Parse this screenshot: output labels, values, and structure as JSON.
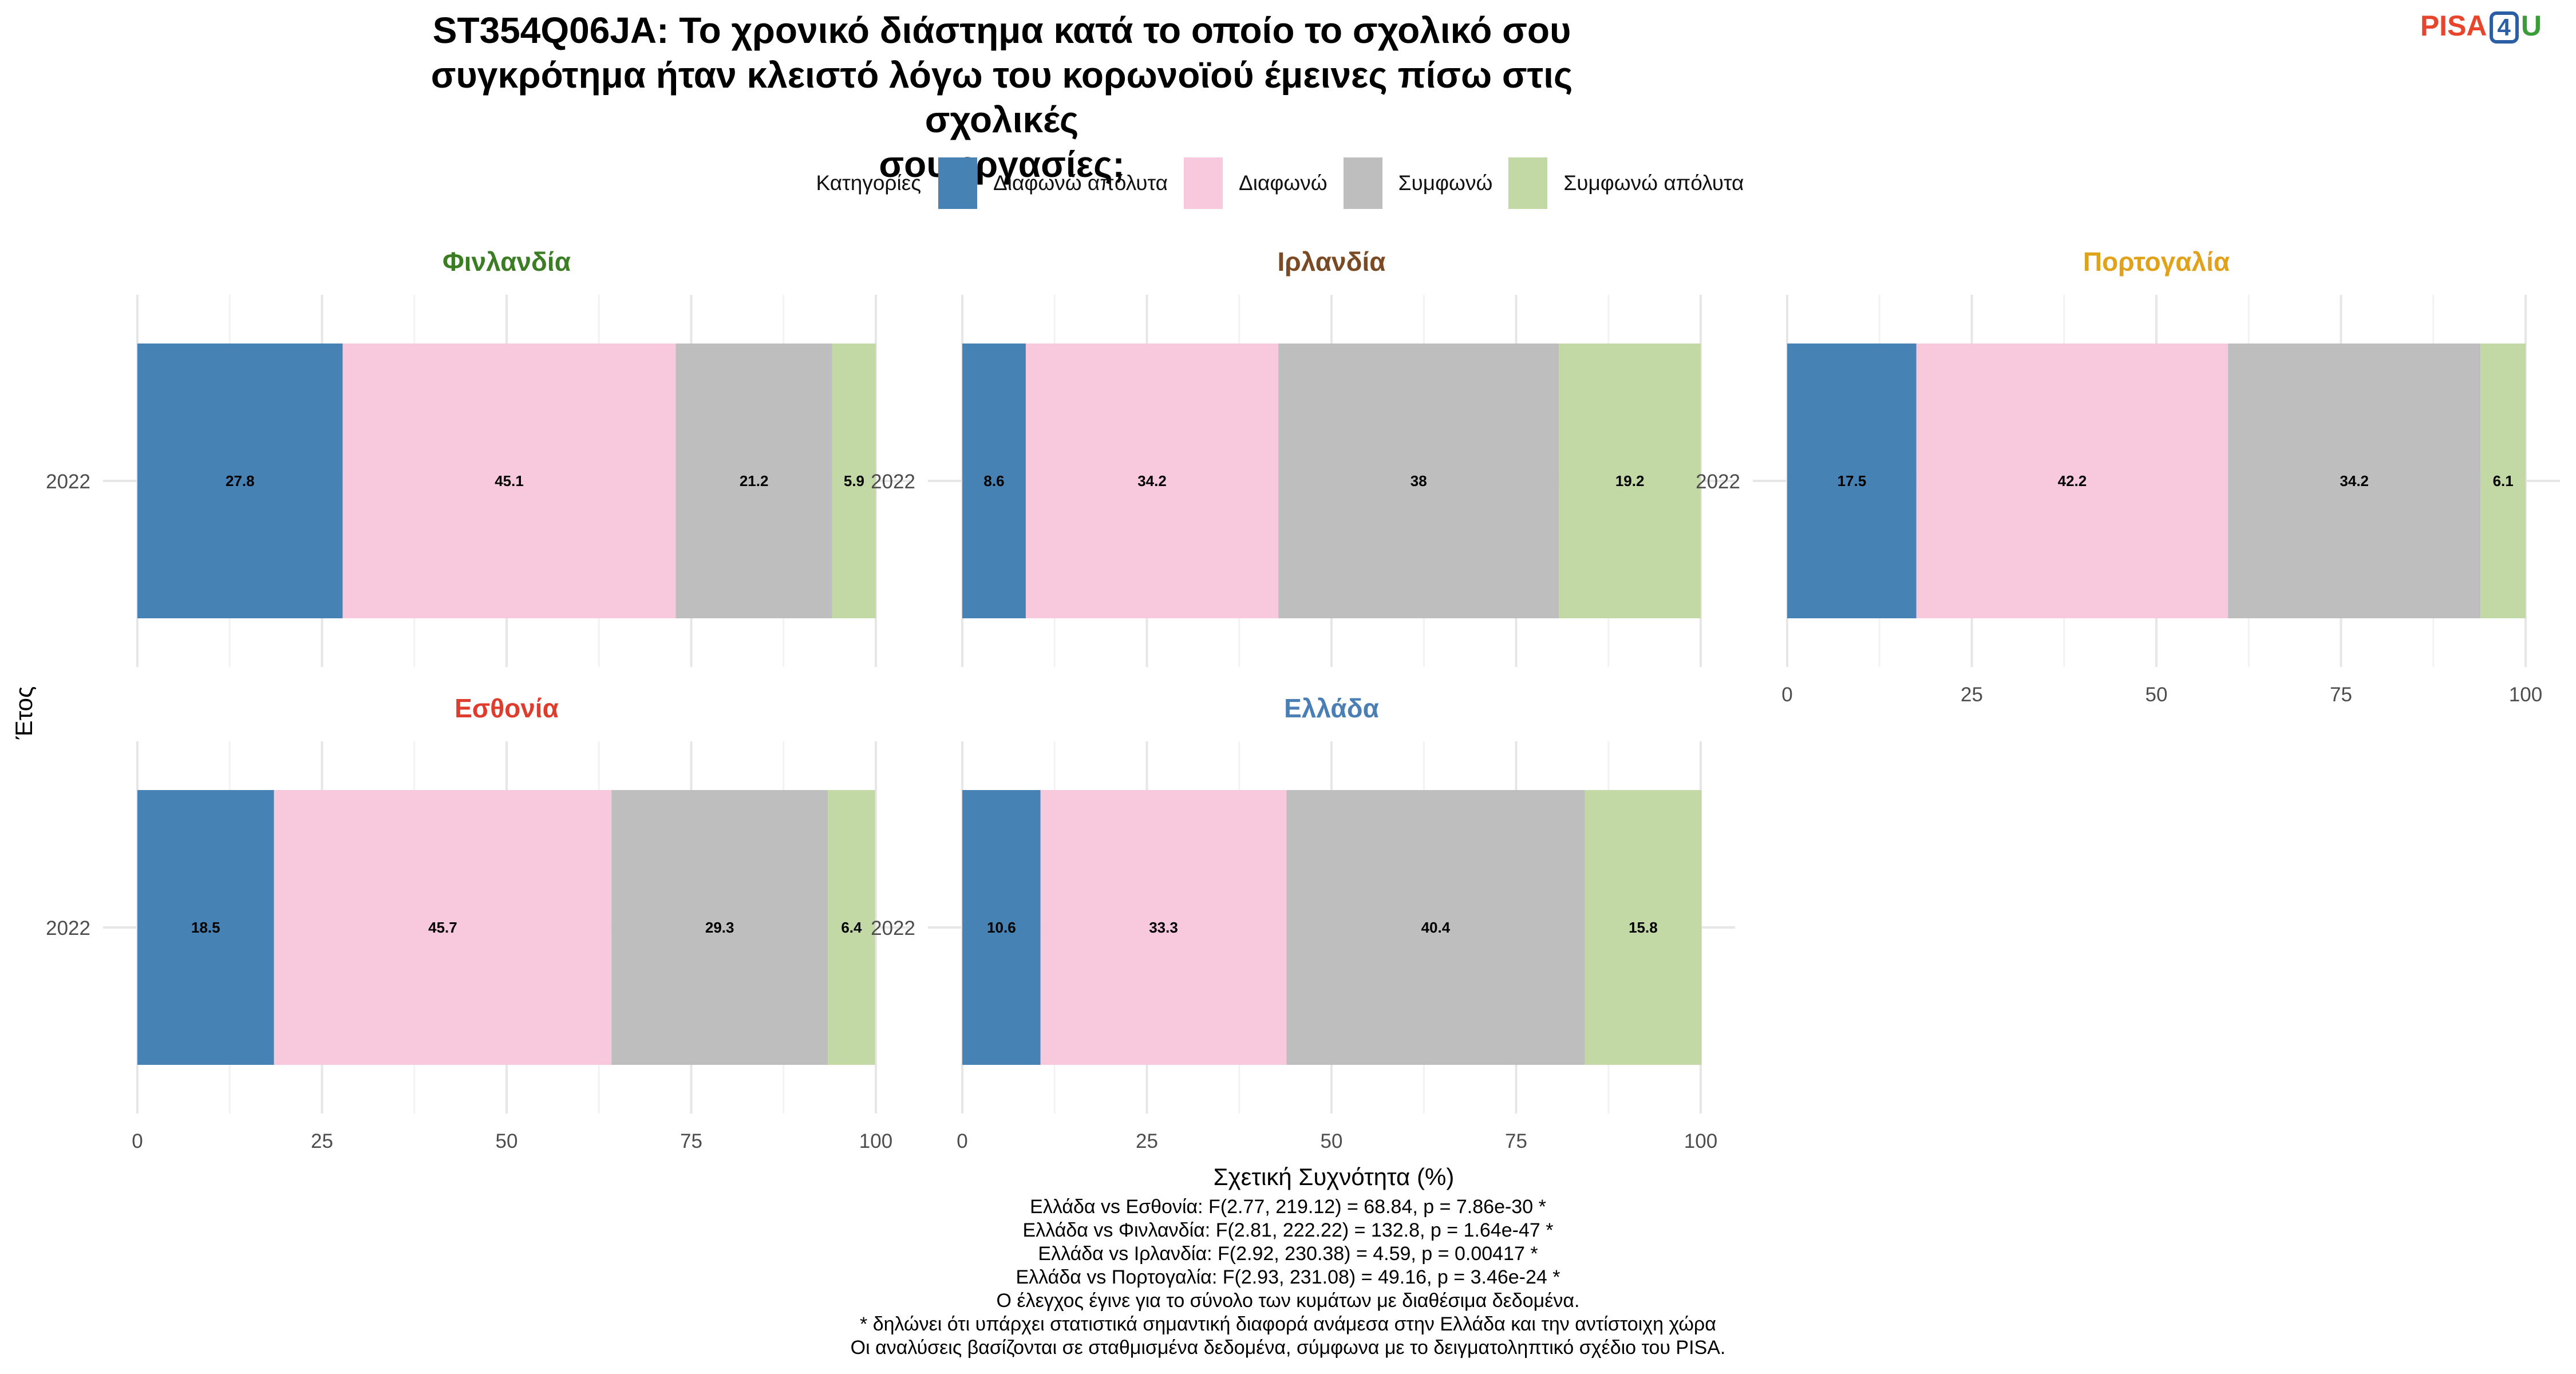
{
  "title_lines": [
    "ST354Q06JA: Το χρονικό διάστημα κατά το οποίο το σχολικό σου",
    "συγκρότημα ήταν κλειστό λόγω του κορωνοϊού έμεινες πίσω στις σχολικές",
    "σου εργασίες;"
  ],
  "logo": {
    "pisa": "PISA",
    "four": "4",
    "u": "U"
  },
  "legend": {
    "title": "Κατηγορίες",
    "items": [
      {
        "label": "Διαφωνώ απόλυτα",
        "color": "#4682B4"
      },
      {
        "label": "Διαφωνώ",
        "color": "#F8C8DC"
      },
      {
        "label": "Συμφωνώ",
        "color": "#BEBEBE"
      },
      {
        "label": "Συμφωνώ απόλυτα",
        "color": "#C2D8A5"
      }
    ]
  },
  "chart_data": {
    "type": "bar",
    "orientation": "horizontal",
    "stacked": true,
    "xlabel": "Σχετική Συχνότητα (%)",
    "ylabel": "Έτος",
    "xlim": [
      0,
      100
    ],
    "xticks": [
      0,
      25,
      50,
      75,
      100
    ],
    "categories": [
      "2022"
    ],
    "series_names": [
      "Διαφωνώ απόλυτα",
      "Διαφωνώ",
      "Συμφωνώ",
      "Συμφωνώ απόλυτα"
    ],
    "series_colors": [
      "#4682B4",
      "#F8C8DC",
      "#BEBEBE",
      "#C2D8A5"
    ],
    "grid": true,
    "legend_position": "top",
    "panels": [
      {
        "title": "Φινλανδία",
        "title_color": "#3A7D22",
        "values": [
          27.8,
          45.1,
          21.2,
          5.9
        ],
        "labels": [
          "27.8",
          "45.1",
          "21.2",
          "5.9"
        ]
      },
      {
        "title": "Ιρλανδία",
        "title_color": "#7A4A24",
        "values": [
          8.6,
          34.2,
          38,
          19.2
        ],
        "labels": [
          "8.6",
          "34.2",
          "38",
          "19.2"
        ]
      },
      {
        "title": "Πορτογαλία",
        "title_color": "#E0A21B",
        "values": [
          17.5,
          42.2,
          34.2,
          6.1
        ],
        "labels": [
          "17.5",
          "42.2",
          "34.2",
          "6.1"
        ]
      },
      {
        "title": "Εσθονία",
        "title_color": "#E03C2D",
        "values": [
          18.5,
          45.7,
          29.3,
          6.4
        ],
        "labels": [
          "18.5",
          "45.7",
          "29.3",
          "6.4"
        ]
      },
      {
        "title": "Ελλάδα",
        "title_color": "#4A7FB5",
        "values": [
          10.6,
          33.3,
          40.4,
          15.8
        ],
        "labels": [
          "10.6",
          "33.3",
          "40.4",
          "15.8"
        ]
      }
    ]
  },
  "stats_lines": [
    "Ελλάδα vs Εσθονία: F(2.77, 219.12) = 68.84, p = 7.86e-30 *",
    "Ελλάδα vs Φινλανδία: F(2.81, 222.22) = 132.8, p = 1.64e-47 *",
    "Ελλάδα vs Ιρλανδία: F(2.92, 230.38) = 4.59, p = 0.00417 *",
    "Ελλάδα vs Πορτογαλία: F(2.93, 231.08) = 49.16, p = 3.46e-24 *",
    "Ο έλεγχος έγινε για το σύνολο των κυμάτων με διαθέσιμα δεδομένα.",
    "* δηλώνει ότι υπάρχει στατιστικά σημαντική διαφορά ανάμεσα στην Ελλάδα και την αντίστοιχη χώρα",
    "Οι αναλύσεις βασίζονται σε σταθμισμένα δεδομένα, σύμφωνα με το δειγματοληπτικό σχέδιο του PISA."
  ]
}
